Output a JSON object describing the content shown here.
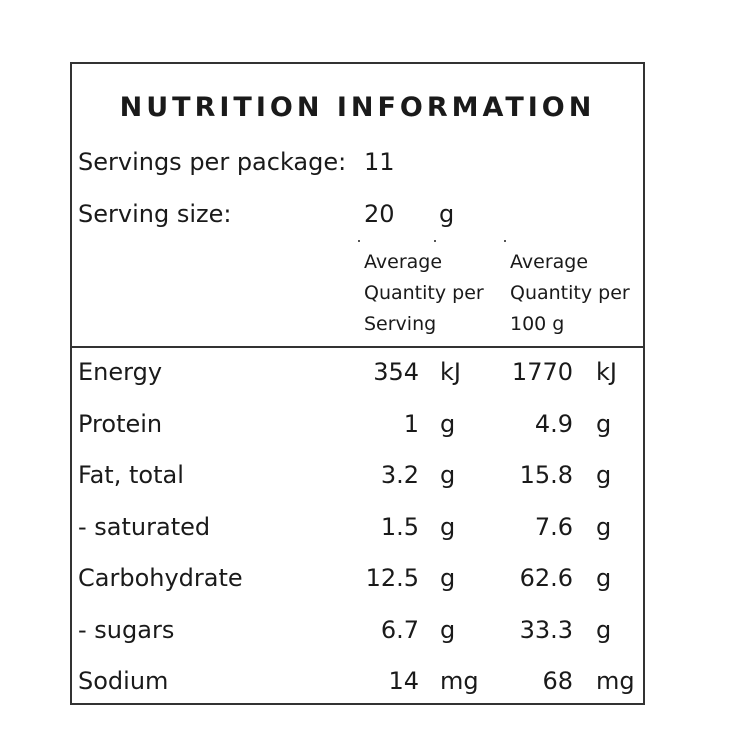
{
  "title": "NUTRITION INFORMATION",
  "servings": {
    "label": "Servings per package:",
    "value": "11"
  },
  "serving_size": {
    "label": "Serving size:",
    "value": "20",
    "unit": "g"
  },
  "headers": {
    "per_serving": "Average\nQuantity per\nServing",
    "per_100g": "Average\nQuantity per\n100 g"
  },
  "rows": [
    {
      "name": "Energy",
      "serving": "354",
      "serving_unit": "kJ",
      "per100": "1770",
      "per100_unit": "kJ"
    },
    {
      "name": "Protein",
      "serving": "1",
      "serving_unit": "g",
      "per100": "4.9",
      "per100_unit": "g"
    },
    {
      "name": "Fat, total",
      "serving": "3.2",
      "serving_unit": "g",
      "per100": "15.8",
      "per100_unit": "g"
    },
    {
      "name": "- saturated",
      "serving": "1.5",
      "serving_unit": "g",
      "per100": "7.6",
      "per100_unit": "g"
    },
    {
      "name": "Carbohydrate",
      "serving": "12.5",
      "serving_unit": "g",
      "per100": "62.6",
      "per100_unit": "g"
    },
    {
      "name": "- sugars",
      "serving": "6.7",
      "serving_unit": "g",
      "per100": "33.3",
      "per100_unit": "g"
    },
    {
      "name": "Sodium",
      "serving": "14",
      "serving_unit": "mg",
      "per100": "68",
      "per100_unit": "mg"
    }
  ]
}
